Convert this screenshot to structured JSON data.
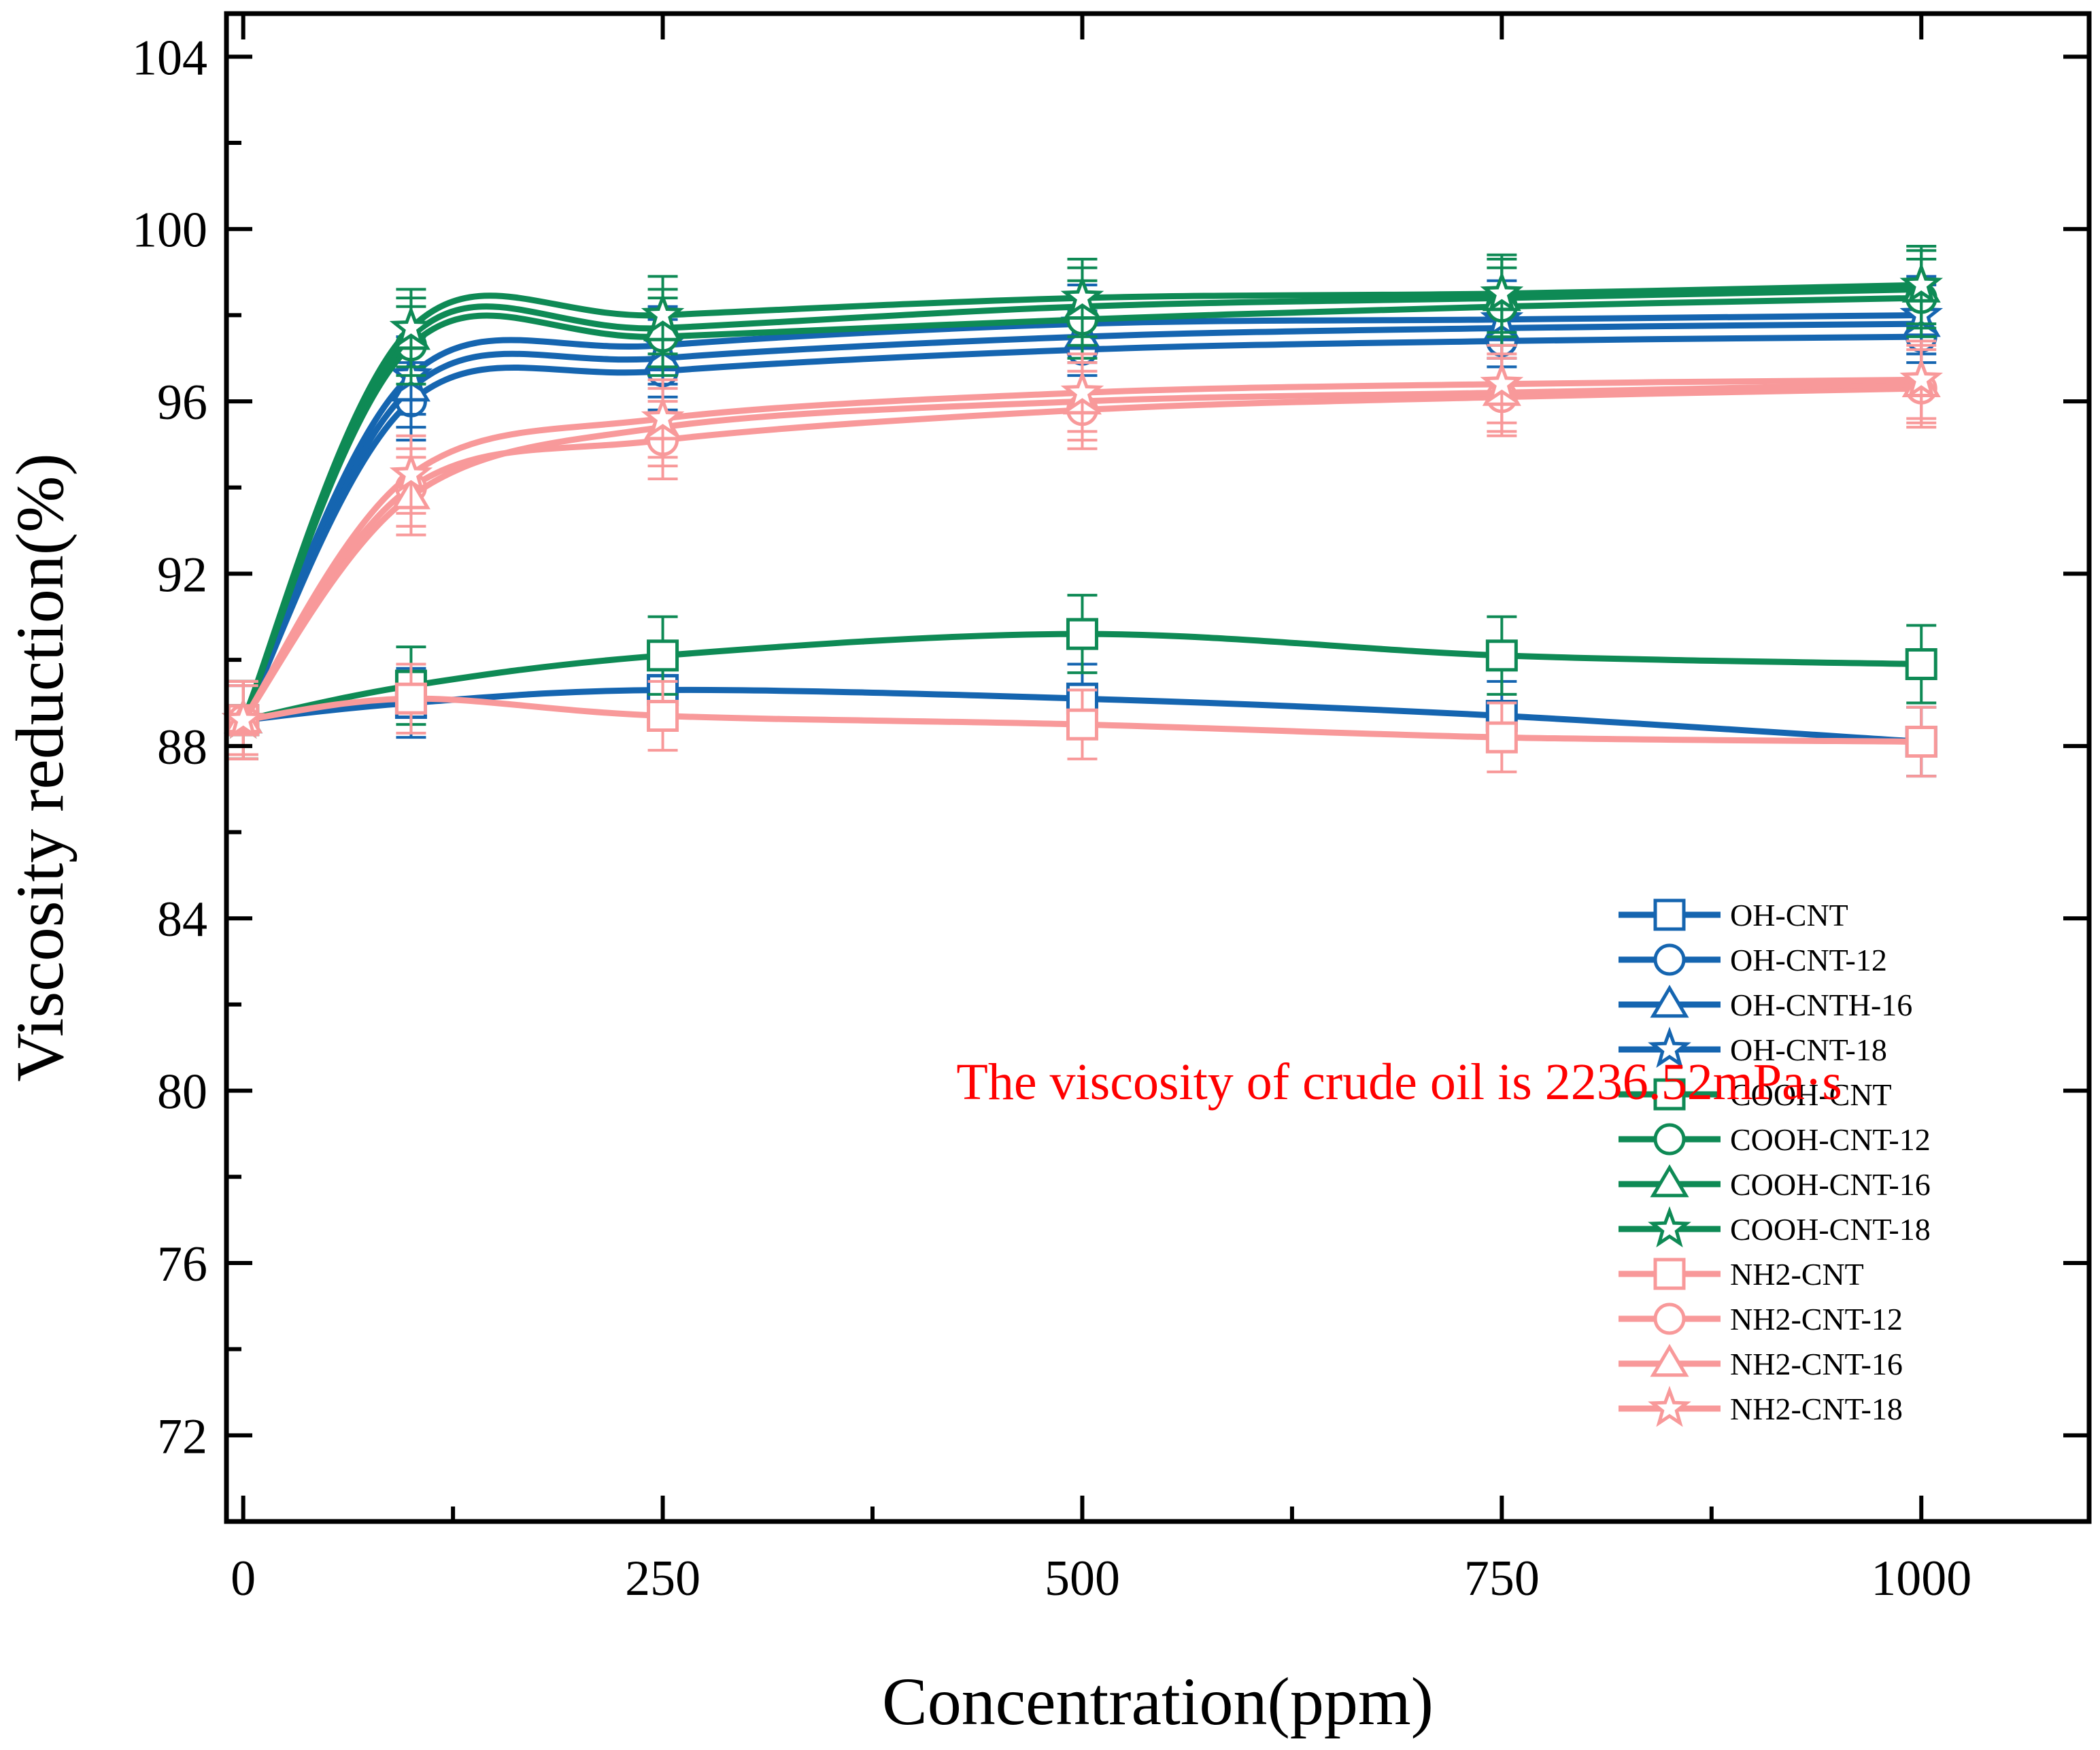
{
  "chart_data": {
    "type": "line",
    "title": "",
    "xlabel": "Concentration(ppm)",
    "ylabel": "Viscosity reduction(%)",
    "xlim": [
      -10,
      1100
    ],
    "ylim": [
      70,
      105
    ],
    "x_ticks": [
      0,
      250,
      500,
      750,
      1000
    ],
    "y_ticks": [
      72,
      76,
      80,
      84,
      88,
      92,
      96,
      100,
      104
    ],
    "x_minor_step": 125,
    "y_minor_step": 2,
    "grid": false,
    "legend_position": "bottom-right",
    "annotation": {
      "text": "The viscosity of crude oil is 2236.52mPa·s",
      "color": "#ff0000",
      "x": 425,
      "y": 79.8
    },
    "x": [
      0,
      100,
      250,
      500,
      750,
      1000
    ],
    "series": [
      {
        "name": "OH-CNT",
        "color": "#1565b0",
        "marker": "square",
        "values": [
          88.6,
          89.0,
          89.3,
          89.1,
          88.7,
          88.1
        ],
        "error": [
          0.8,
          0.8,
          0.8,
          0.8,
          0.8,
          0.8
        ]
      },
      {
        "name": "OH-CNT-12",
        "color": "#1565b0",
        "marker": "circle",
        "values": [
          88.6,
          96.0,
          96.7,
          97.2,
          97.4,
          97.5
        ],
        "error": [
          0.9,
          0.9,
          0.9,
          0.9,
          0.9,
          0.9
        ]
      },
      {
        "name": "OH-CNTH-16",
        "color": "#1565b0",
        "marker": "triangle",
        "values": [
          88.6,
          96.3,
          97.0,
          97.5,
          97.7,
          97.8
        ],
        "error": [
          0.9,
          0.9,
          0.9,
          0.9,
          0.9,
          0.9
        ]
      },
      {
        "name": "OH-CNT-18",
        "color": "#1565b0",
        "marker": "star",
        "values": [
          88.6,
          96.6,
          97.3,
          97.8,
          97.9,
          98.0
        ],
        "error": [
          0.9,
          0.9,
          0.9,
          0.9,
          0.9,
          0.9
        ]
      },
      {
        "name": "COOH-CNT",
        "color": "#0e8a55",
        "marker": "square",
        "values": [
          88.6,
          89.4,
          90.1,
          90.6,
          90.1,
          89.9
        ],
        "error": [
          0.9,
          0.9,
          0.9,
          0.9,
          0.9,
          0.9
        ]
      },
      {
        "name": "COOH-CNT-12",
        "color": "#0e8a55",
        "marker": "circle",
        "values": [
          88.6,
          97.3,
          97.5,
          97.9,
          98.2,
          98.4
        ],
        "error": [
          0.9,
          0.9,
          0.9,
          0.9,
          0.9,
          0.9
        ]
      },
      {
        "name": "COOH-CNT-16",
        "color": "#0e8a55",
        "marker": "triangle",
        "values": [
          88.6,
          97.5,
          97.7,
          98.2,
          98.4,
          98.6
        ],
        "error": [
          0.9,
          0.9,
          0.9,
          0.9,
          0.9,
          0.9
        ]
      },
      {
        "name": "COOH-CNT-18",
        "color": "#0e8a55",
        "marker": "star",
        "values": [
          88.6,
          97.7,
          98.0,
          98.4,
          98.5,
          98.7
        ],
        "error": [
          0.9,
          0.9,
          0.9,
          0.9,
          0.9,
          0.9
        ]
      },
      {
        "name": "NH2-CNT",
        "color": "#f8999a",
        "marker": "square",
        "values": [
          88.6,
          89.1,
          88.7,
          88.5,
          88.2,
          88.1
        ],
        "error": [
          0.8,
          0.8,
          0.8,
          0.8,
          0.8,
          0.8
        ]
      },
      {
        "name": "NH2-CNT-12",
        "color": "#f8999a",
        "marker": "circle",
        "values": [
          88.6,
          94.0,
          95.1,
          95.8,
          96.1,
          96.3
        ],
        "error": [
          0.9,
          0.9,
          0.9,
          0.9,
          0.9,
          0.9
        ]
      },
      {
        "name": "NH2-CNT-16",
        "color": "#f8999a",
        "marker": "triangle",
        "values": [
          88.6,
          93.8,
          95.4,
          96.0,
          96.2,
          96.4
        ],
        "error": [
          0.9,
          0.9,
          0.9,
          0.9,
          0.9,
          0.9
        ]
      },
      {
        "name": "NH2-CNT-18",
        "color": "#f8999a",
        "marker": "star",
        "values": [
          88.6,
          94.3,
          95.6,
          96.2,
          96.4,
          96.5
        ],
        "error": [
          0.9,
          0.9,
          0.9,
          0.9,
          0.9,
          0.9
        ]
      }
    ]
  }
}
